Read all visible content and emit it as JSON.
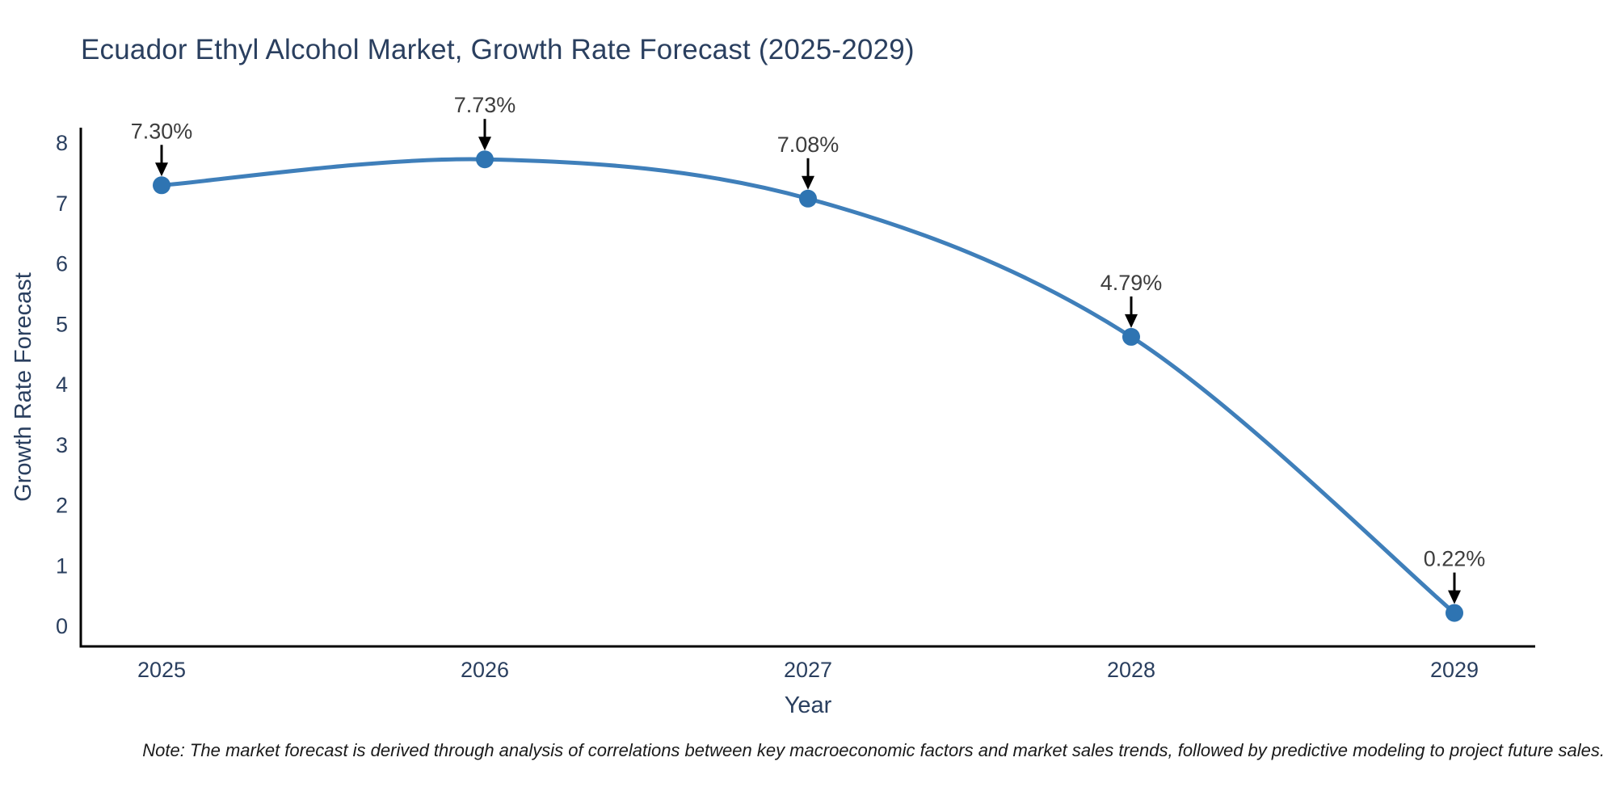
{
  "chart_data": {
    "type": "line",
    "title": "Ecuador Ethyl Alcohol Market, Growth Rate Forecast (2025-2029)",
    "xlabel": "Year",
    "ylabel": "Growth Rate Forecast",
    "categories": [
      "2025",
      "2026",
      "2027",
      "2028",
      "2029"
    ],
    "values": [
      7.3,
      7.73,
      7.08,
      4.79,
      0.22
    ],
    "point_labels": [
      "7.30%",
      "7.73%",
      "7.08%",
      "4.79%",
      "0.22%"
    ],
    "ylim": [
      0,
      8.25
    ],
    "yticks": [
      0,
      1,
      2,
      3,
      4,
      5,
      6,
      7,
      8
    ],
    "grid": false,
    "legend_position": "none",
    "styles": {
      "line_color": "#3f7fba",
      "marker_color": "#2e74b2",
      "axis_line_color": "#000000",
      "tick_label_color": "#2a3f5f",
      "axis_title_color": "#2a3f5f",
      "title_color": "#2a3f5f",
      "annotation_text_color": "#3d3d3d",
      "arrow_color": "#000000",
      "background_color": "#ffffff"
    }
  },
  "footnote": "Note: The market forecast is derived through analysis of correlations between key macroeconomic factors and market sales trends, followed by predictive modeling to project future sales."
}
